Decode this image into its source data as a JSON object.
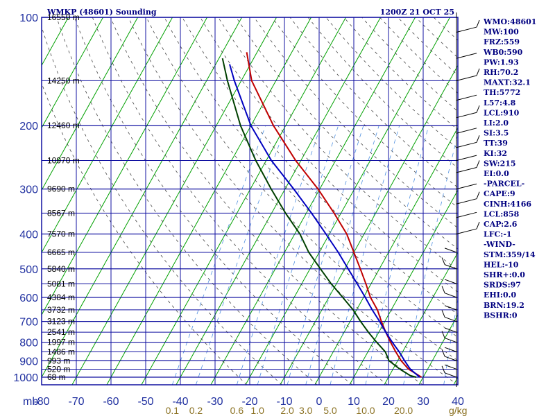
{
  "header": {
    "station": "WMKP (48601) Sounding",
    "time": "1200Z 21 OCT 25"
  },
  "colors": {
    "grid": "#1010a0",
    "isotherm": "#00a000",
    "dry_adiabat": "#444444",
    "mixing_ratio": "#5090e0",
    "temperature": "#c00000",
    "dewpoint": "#004000",
    "parcel": "#0000c0",
    "labels": "#000080"
  },
  "chart_data": {
    "type": "line",
    "title": "WMKP (48601) Sounding",
    "pressure_axis_label": "mb",
    "temperature_axis_ticks": [
      "-80",
      "-70",
      "-60",
      "-50",
      "-40",
      "-30",
      "-20",
      "-10",
      "0",
      "10",
      "20",
      "30",
      "40"
    ],
    "mixing_ratio_axis_label": "g/kg",
    "mixing_ratio_ticks": [
      "0.1",
      "0.2",
      "0.6",
      "1.0",
      "2.0",
      "3.0",
      "5.0",
      "10.0",
      "20.0"
    ],
    "pressure_levels": [
      {
        "p": 100,
        "label": "100",
        "height": "16550 m"
      },
      {
        "p": 150,
        "label": "",
        "height": "14250 m"
      },
      {
        "p": 200,
        "label": "200",
        "height": "12460 m"
      },
      {
        "p": 250,
        "label": "",
        "height": "10970 m"
      },
      {
        "p": 300,
        "label": "300",
        "height": "9690 m"
      },
      {
        "p": 350,
        "label": "",
        "height": "8567 m"
      },
      {
        "p": 400,
        "label": "400",
        "height": "7570 m"
      },
      {
        "p": 450,
        "label": "",
        "height": "6665 m"
      },
      {
        "p": 500,
        "label": "500",
        "height": "5840 m"
      },
      {
        "p": 550,
        "label": "",
        "height": "5081 m"
      },
      {
        "p": 600,
        "label": "600",
        "height": "4384 m"
      },
      {
        "p": 650,
        "label": "",
        "height": "3732 m"
      },
      {
        "p": 700,
        "label": "700",
        "height": "3123 m"
      },
      {
        "p": 750,
        "label": "",
        "height": "2541 m"
      },
      {
        "p": 800,
        "label": "800",
        "height": "1997 m"
      },
      {
        "p": 850,
        "label": "",
        "height": "1486 m"
      },
      {
        "p": 900,
        "label": "900",
        "height": "993 m"
      },
      {
        "p": 950,
        "label": "",
        "height": "520 m"
      },
      {
        "p": 1000,
        "label": "1000",
        "height": "68 m"
      }
    ],
    "temperature_profile": [
      [
        1000,
        29.5
      ],
      [
        950,
        24.5
      ],
      [
        900,
        21.0
      ],
      [
        850,
        18.0
      ],
      [
        800,
        15.0
      ],
      [
        750,
        12.0
      ],
      [
        700,
        9.0
      ],
      [
        650,
        6.0
      ],
      [
        600,
        2.0
      ],
      [
        550,
        -1.5
      ],
      [
        500,
        -5.5
      ],
      [
        450,
        -10.0
      ],
      [
        400,
        -15.0
      ],
      [
        350,
        -22.0
      ],
      [
        300,
        -30.5
      ],
      [
        250,
        -41.5
      ],
      [
        200,
        -53.5
      ],
      [
        150,
        -67.0
      ],
      [
        125,
        -73.0
      ]
    ],
    "dewpoint_profile": [
      [
        1000,
        28.0
      ],
      [
        990,
        26.0
      ],
      [
        950,
        22.0
      ],
      [
        900,
        17.5
      ],
      [
        850,
        15.0
      ],
      [
        800,
        11.0
      ],
      [
        750,
        7.0
      ],
      [
        700,
        3.0
      ],
      [
        650,
        -1.0
      ],
      [
        600,
        -6.0
      ],
      [
        550,
        -11.5
      ],
      [
        500,
        -17.0
      ],
      [
        450,
        -23.0
      ],
      [
        400,
        -28.5
      ],
      [
        350,
        -36.0
      ],
      [
        300,
        -44.0
      ],
      [
        250,
        -53.0
      ],
      [
        200,
        -63.0
      ],
      [
        150,
        -74.0
      ],
      [
        130,
        -79.0
      ]
    ],
    "parcel_profile": [
      [
        1000,
        29.0
      ],
      [
        950,
        25.0
      ],
      [
        900,
        22.0
      ],
      [
        850,
        19.0
      ],
      [
        800,
        15.5
      ],
      [
        750,
        12.0
      ],
      [
        700,
        8.5
      ],
      [
        650,
        4.5
      ],
      [
        600,
        0.5
      ],
      [
        550,
        -4.0
      ],
      [
        500,
        -9.0
      ],
      [
        450,
        -14.5
      ],
      [
        400,
        -21.0
      ],
      [
        350,
        -28.5
      ],
      [
        300,
        -37.5
      ],
      [
        250,
        -48.5
      ],
      [
        200,
        -60.0
      ],
      [
        150,
        -72.0
      ],
      [
        135,
        -76.0
      ]
    ],
    "indices": [
      "WMO:48601",
      "MW:100",
      "FRZ:559",
      "WB0:590",
      "PW:1.93",
      "RH:70.2",
      "MAXT:32.1",
      "TH:5772",
      "L57:4.8",
      "LCL:910",
      "LI:2.0",
      "SI:3.5",
      "TT:39",
      "KI:32",
      "SW:215",
      "EI:0.0",
      "-PARCEL-",
      "CAPE:9",
      "CINH:4166",
      "LCL:858",
      "CAP:2.6",
      "LFC:-1",
      "-WIND-",
      "STM:359/14",
      "HEL:-10",
      "SHR+:0.0",
      "SRDS:97",
      "EHI:0.0",
      "BRN:19.2",
      "BSHR:0"
    ]
  }
}
